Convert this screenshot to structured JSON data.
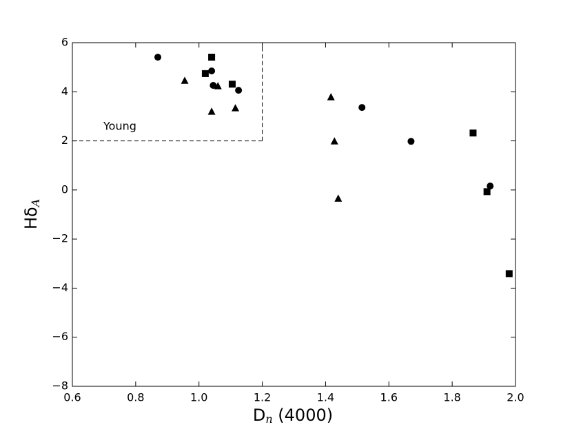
{
  "chart_data": {
    "type": "scatter",
    "xlabel": {
      "main": "D",
      "sub": "n",
      "rest": " (4000)"
    },
    "ylabel": {
      "main": "Hδ",
      "sub": "A"
    },
    "xlim": [
      0.6,
      2.0
    ],
    "xticks": [
      0.6,
      0.8,
      {
        "value": 1,
        "label": "1.0"
      },
      1.2,
      1.4,
      1.6,
      1.8,
      {
        "value": 2,
        "label": "2.0"
      }
    ],
    "ylim": [
      -8,
      6
    ],
    "yticks": [
      {
        "value": -8,
        "label": "−8"
      },
      {
        "value": -6,
        "label": "−6"
      },
      {
        "value": -4,
        "label": "−4"
      },
      {
        "value": -2,
        "label": "−2"
      },
      0,
      2,
      4,
      6
    ],
    "series": [
      {
        "marker": "circle",
        "color": "#000000",
        "x": [
          0.87,
          1.04,
          1.045,
          1.125,
          1.515,
          1.67,
          1.92
        ],
        "values": [
          5.41,
          4.85,
          4.26,
          4.06,
          3.36,
          1.98,
          0.16
        ]
      },
      {
        "marker": "square",
        "color": "#000000",
        "x": [
          1.04,
          1.02,
          1.105,
          1.866,
          1.91,
          1.98
        ],
        "values": [
          5.41,
          4.74,
          4.31,
          2.32,
          -0.07,
          -3.41
        ]
      },
      {
        "marker": "triangle",
        "color": "#000000",
        "x": [
          0.955,
          1.06,
          1.04,
          1.115,
          1.417,
          1.428,
          1.44
        ],
        "values": [
          4.45,
          4.23,
          3.19,
          3.33,
          3.78,
          1.98,
          -0.35
        ]
      }
    ],
    "region": {
      "label": "Young",
      "x": [
        0.6,
        1.2
      ],
      "y": [
        2,
        6
      ]
    }
  }
}
